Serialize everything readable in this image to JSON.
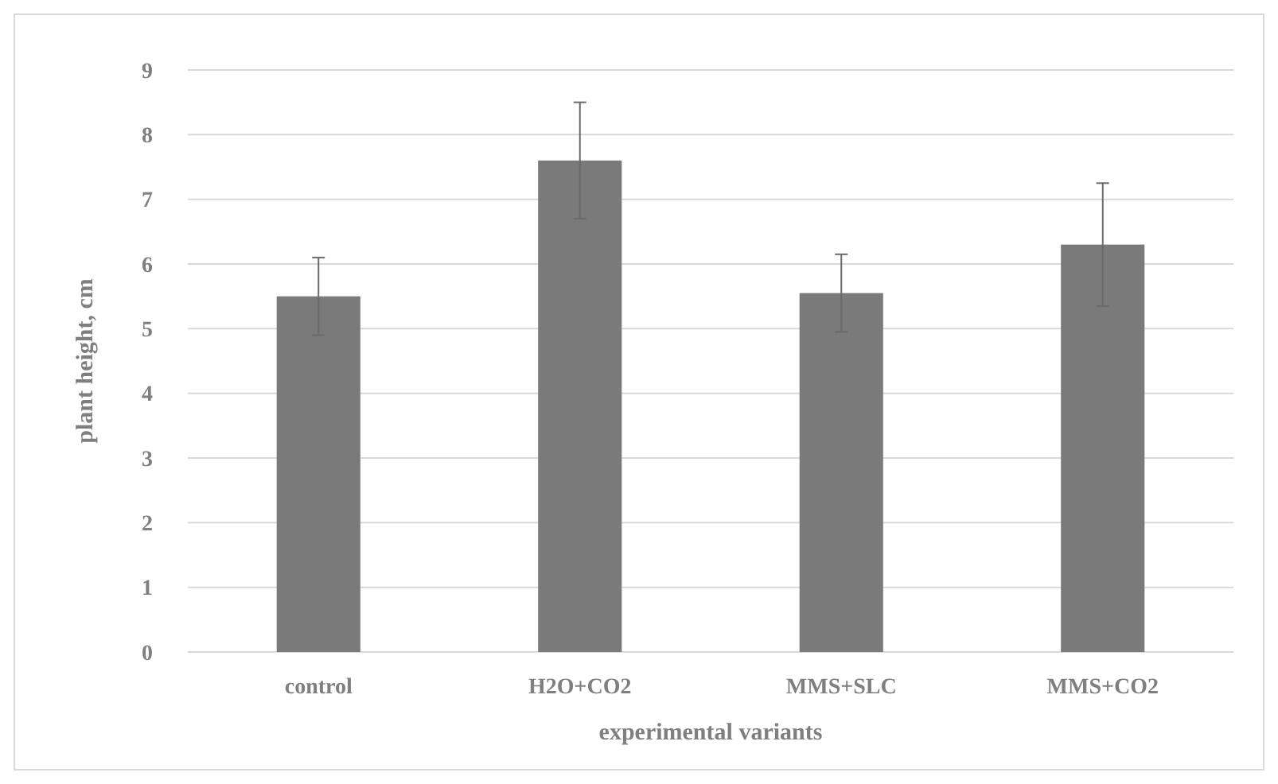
{
  "chart_data": {
    "type": "bar",
    "xlabel": "experimental variants",
    "ylabel": "plant height, cm",
    "categories": [
      "control",
      "H2O+CO2",
      "MMS+SLC",
      "MMS+CO2"
    ],
    "values": [
      5.5,
      7.6,
      5.55,
      6.3
    ],
    "errors": [
      0.6,
      0.9,
      0.6,
      0.95
    ],
    "color": "#7a7a7a",
    "ylim": [
      0,
      9
    ],
    "yticks": [
      0,
      1,
      2,
      3,
      4,
      5,
      6,
      7,
      8,
      9
    ],
    "grid": "y"
  }
}
